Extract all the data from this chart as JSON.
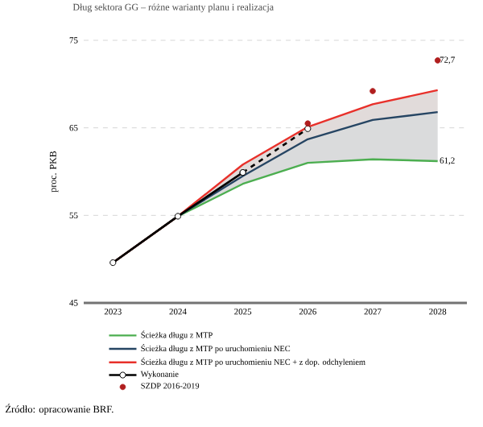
{
  "chart_data": {
    "type": "line",
    "title": "Dług sektora GG – różne warianty planu i realizacja",
    "ylabel": "proc. PKB",
    "xlim": [
      2022.55,
      2028.45
    ],
    "xticks": [
      2023,
      2024,
      2025,
      2026,
      2027,
      2028
    ],
    "ylim": [
      45,
      75
    ],
    "yticks": [
      45,
      55,
      65,
      75
    ],
    "grid": "y",
    "legend": "bottom",
    "series": [
      {
        "name": "Ścieżka długu z MTP",
        "color": "#4cae50",
        "x": [
          2023,
          2024,
          2025,
          2026,
          2027,
          2028
        ],
        "values": [
          49.6,
          54.9,
          58.6,
          61.0,
          61.4,
          61.2
        ],
        "value_labels": [
          null,
          null,
          null,
          null,
          null,
          "61,2"
        ],
        "marker": "none"
      },
      {
        "name": "Ścieżka długu z MTP po uruchomieniu NEC",
        "color": "#264563",
        "x": [
          2023,
          2024,
          2025,
          2026,
          2027,
          2028
        ],
        "values": [
          49.6,
          54.9,
          59.5,
          63.7,
          65.9,
          66.8
        ],
        "lower": [
          49.6,
          54.9,
          58.6,
          61.0,
          61.4,
          61.2
        ],
        "upper": [
          49.6,
          54.9,
          59.5,
          63.7,
          65.9,
          66.8
        ],
        "marker": "none"
      },
      {
        "name": "Ścieżka długu z MTP po uruchomieniu NEC + z dop. odchyleniem",
        "color": "#e8302a",
        "x": [
          2023,
          2024,
          2025,
          2026,
          2027,
          2028
        ],
        "values": [
          49.6,
          54.9,
          60.8,
          65.1,
          67.7,
          69.3
        ],
        "lower": [
          49.6,
          54.9,
          59.5,
          63.7,
          65.9,
          66.8
        ],
        "upper": [
          49.6,
          54.9,
          60.8,
          65.1,
          67.7,
          69.3
        ],
        "marker": "none"
      },
      {
        "name": "Wykonanie",
        "color": "#000000",
        "x": [
          2023,
          2024,
          2025
        ],
        "values": [
          49.6,
          54.9,
          59.9
        ],
        "marker": "circle",
        "line_style": "solid"
      },
      {
        "color": "#000000",
        "x": [
          2025,
          2026
        ],
        "values": [
          59.9,
          64.9
        ],
        "marker": "circle",
        "line_style": "dashed"
      },
      {
        "name": "SZDP 2016-2019",
        "type": "scatter",
        "color": "#b01e1e",
        "x": [
          2026,
          2027,
          2028
        ],
        "values": [
          65.5,
          69.2,
          72.7
        ],
        "value_labels": [
          null,
          null,
          "72,7"
        ],
        "marker": "circle"
      }
    ],
    "annotations": [
      "Źródło: opracowanie BRF."
    ]
  }
}
